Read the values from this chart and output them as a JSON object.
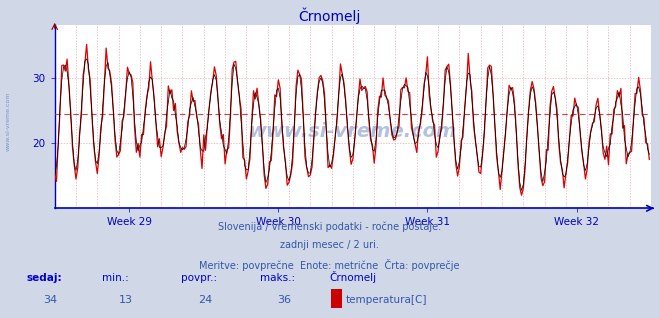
{
  "title": "Črnomelj",
  "bg_color": "#d0d8e8",
  "plot_bg_color": "#ffffff",
  "line_color": "#dd0000",
  "black_line_color": "#000000",
  "avg_line_value": 24.5,
  "y_ticks": [
    20,
    30
  ],
  "y_lim": [
    10,
    38
  ],
  "x_tick_labels": [
    "Week 29",
    "Week 30",
    "Week 31",
    "Week 32"
  ],
  "subtitle1": "Slovenija / vremenski podatki - ročne postaje.",
  "subtitle2": "zadnji mesec / 2 uri.",
  "subtitle3": "Meritve: povprečne  Enote: metrične  Črta: povprečje",
  "footer_labels": [
    "sedaj:",
    "min.:",
    "povpr.:",
    "maks.:",
    "Črnomelj"
  ],
  "footer_values": [
    "34",
    "13",
    "24",
    "36"
  ],
  "footer_series": "temperatura[C]",
  "series_color": "#cc0000",
  "title_color": "#0000bb",
  "subtitle_color": "#3355aa",
  "footer_label_color": "#0000cc",
  "footer_value_color": "#3355aa",
  "axis_color": "#0000bb",
  "grid_color": "#ddaaaa",
  "watermark": "www.si-vreme.com",
  "watermark_color": "#5577bb",
  "left_label": "www.si-vreme.com",
  "num_points": 336,
  "seed": 12345
}
